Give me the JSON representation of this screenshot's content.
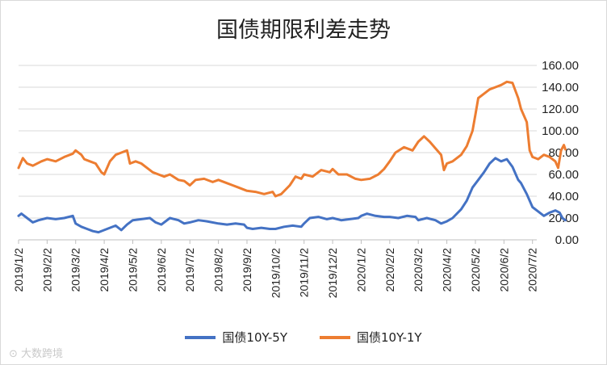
{
  "chart_data": {
    "type": "line",
    "title": "国债期限利差走势",
    "x": [
      "2019/1/2",
      "2019/2/2",
      "2019/3/2",
      "2019/4/2",
      "2019/5/2",
      "2019/6/2",
      "2019/7/2",
      "2019/8/2",
      "2019/9/2",
      "2019/10/2",
      "2019/11/2",
      "2019/12/2",
      "2020/1/2",
      "2020/2/2",
      "2020/3/2",
      "2020/4/2",
      "2020/5/2",
      "2020/6/2",
      "2020/7/2"
    ],
    "yticks": [
      "0.00",
      "20.00",
      "40.00",
      "60.00",
      "80.00",
      "100.00",
      "120.00",
      "140.00",
      "160.00"
    ],
    "ylim": [
      0,
      160
    ],
    "grid": true,
    "legend_position": "bottom",
    "series": [
      {
        "name": "国债10Y-5Y",
        "color": "#4472c4",
        "values": [
          [
            0,
            22
          ],
          [
            0.1,
            24
          ],
          [
            0.3,
            20
          ],
          [
            0.5,
            16
          ],
          [
            0.7,
            18
          ],
          [
            1.0,
            20
          ],
          [
            1.3,
            19
          ],
          [
            1.6,
            20
          ],
          [
            1.9,
            22
          ],
          [
            2.0,
            15
          ],
          [
            2.2,
            12
          ],
          [
            2.4,
            10
          ],
          [
            2.6,
            8
          ],
          [
            2.8,
            7
          ],
          [
            3.0,
            9
          ],
          [
            3.2,
            11
          ],
          [
            3.4,
            13
          ],
          [
            3.6,
            9
          ],
          [
            3.8,
            14
          ],
          [
            4.0,
            18
          ],
          [
            4.3,
            19
          ],
          [
            4.6,
            20
          ],
          [
            4.8,
            16
          ],
          [
            5.0,
            14
          ],
          [
            5.3,
            20
          ],
          [
            5.6,
            18
          ],
          [
            5.8,
            15
          ],
          [
            6.0,
            16
          ],
          [
            6.3,
            18
          ],
          [
            6.6,
            17
          ],
          [
            7.0,
            15
          ],
          [
            7.3,
            14
          ],
          [
            7.6,
            15
          ],
          [
            7.9,
            14
          ],
          [
            8.0,
            11
          ],
          [
            8.2,
            10
          ],
          [
            8.5,
            11
          ],
          [
            8.8,
            10
          ],
          [
            9.0,
            10
          ],
          [
            9.3,
            12
          ],
          [
            9.6,
            13
          ],
          [
            9.9,
            12
          ],
          [
            10.0,
            15
          ],
          [
            10.2,
            20
          ],
          [
            10.5,
            21
          ],
          [
            10.8,
            19
          ],
          [
            11.0,
            20
          ],
          [
            11.3,
            18
          ],
          [
            11.6,
            19
          ],
          [
            11.9,
            20
          ],
          [
            12.0,
            22
          ],
          [
            12.2,
            24
          ],
          [
            12.5,
            22
          ],
          [
            12.8,
            21
          ],
          [
            13.0,
            21
          ],
          [
            13.3,
            20
          ],
          [
            13.6,
            22
          ],
          [
            13.9,
            21
          ],
          [
            14.0,
            18
          ],
          [
            14.3,
            20
          ],
          [
            14.6,
            18
          ],
          [
            14.8,
            15
          ],
          [
            15.0,
            17
          ],
          [
            15.2,
            20
          ],
          [
            15.5,
            28
          ],
          [
            15.7,
            36
          ],
          [
            15.9,
            48
          ],
          [
            16.1,
            55
          ],
          [
            16.3,
            62
          ],
          [
            16.5,
            70
          ],
          [
            16.7,
            75
          ],
          [
            16.9,
            72
          ],
          [
            17.1,
            74
          ],
          [
            17.3,
            67
          ],
          [
            17.5,
            55
          ],
          [
            17.6,
            52
          ],
          [
            17.8,
            42
          ],
          [
            18.0,
            30
          ],
          [
            18.2,
            26
          ],
          [
            18.4,
            22
          ],
          [
            18.6,
            25
          ],
          [
            18.8,
            27
          ],
          [
            18.95,
            25
          ],
          [
            19.05,
            20
          ],
          [
            19.15,
            18
          ]
        ]
      },
      {
        "name": "国债10Y-1Y",
        "color": "#ed7d31",
        "values": [
          [
            0,
            66
          ],
          [
            0.15,
            75
          ],
          [
            0.3,
            70
          ],
          [
            0.5,
            68
          ],
          [
            0.8,
            72
          ],
          [
            1.0,
            74
          ],
          [
            1.3,
            72
          ],
          [
            1.6,
            76
          ],
          [
            1.9,
            79
          ],
          [
            2.0,
            82
          ],
          [
            2.2,
            78
          ],
          [
            2.3,
            74
          ],
          [
            2.5,
            72
          ],
          [
            2.7,
            70
          ],
          [
            2.9,
            62
          ],
          [
            3.0,
            60
          ],
          [
            3.2,
            72
          ],
          [
            3.4,
            78
          ],
          [
            3.6,
            80
          ],
          [
            3.8,
            82
          ],
          [
            3.9,
            70
          ],
          [
            4.1,
            72
          ],
          [
            4.3,
            70
          ],
          [
            4.5,
            66
          ],
          [
            4.7,
            62
          ],
          [
            4.9,
            60
          ],
          [
            5.1,
            58
          ],
          [
            5.3,
            60
          ],
          [
            5.6,
            55
          ],
          [
            5.8,
            54
          ],
          [
            6.0,
            50
          ],
          [
            6.2,
            55
          ],
          [
            6.5,
            56
          ],
          [
            6.8,
            53
          ],
          [
            7.0,
            55
          ],
          [
            7.3,
            52
          ],
          [
            7.5,
            50
          ],
          [
            7.7,
            48
          ],
          [
            8.0,
            45
          ],
          [
            8.3,
            44
          ],
          [
            8.6,
            42
          ],
          [
            8.9,
            44
          ],
          [
            9.0,
            40
          ],
          [
            9.2,
            42
          ],
          [
            9.5,
            50
          ],
          [
            9.7,
            58
          ],
          [
            9.9,
            56
          ],
          [
            10.0,
            60
          ],
          [
            10.3,
            58
          ],
          [
            10.6,
            64
          ],
          [
            10.9,
            62
          ],
          [
            11.0,
            65
          ],
          [
            11.2,
            60
          ],
          [
            11.5,
            60
          ],
          [
            11.8,
            56
          ],
          [
            12.0,
            55
          ],
          [
            12.3,
            56
          ],
          [
            12.6,
            60
          ],
          [
            12.8,
            65
          ],
          [
            13.0,
            72
          ],
          [
            13.2,
            80
          ],
          [
            13.5,
            85
          ],
          [
            13.8,
            82
          ],
          [
            14.0,
            90
          ],
          [
            14.2,
            95
          ],
          [
            14.4,
            90
          ],
          [
            14.6,
            84
          ],
          [
            14.8,
            78
          ],
          [
            14.9,
            64
          ],
          [
            15.0,
            70
          ],
          [
            15.2,
            72
          ],
          [
            15.5,
            78
          ],
          [
            15.7,
            86
          ],
          [
            15.9,
            100
          ],
          [
            16.0,
            115
          ],
          [
            16.1,
            130
          ],
          [
            16.3,
            134
          ],
          [
            16.5,
            138
          ],
          [
            16.7,
            140
          ],
          [
            16.9,
            142
          ],
          [
            17.1,
            145
          ],
          [
            17.3,
            144
          ],
          [
            17.5,
            130
          ],
          [
            17.6,
            120
          ],
          [
            17.8,
            108
          ],
          [
            17.9,
            82
          ],
          [
            18.0,
            76
          ],
          [
            18.2,
            74
          ],
          [
            18.4,
            78
          ],
          [
            18.6,
            76
          ],
          [
            18.8,
            72
          ],
          [
            18.9,
            66
          ],
          [
            19.0,
            82
          ],
          [
            19.1,
            87
          ],
          [
            19.15,
            83
          ]
        ]
      }
    ]
  }
}
